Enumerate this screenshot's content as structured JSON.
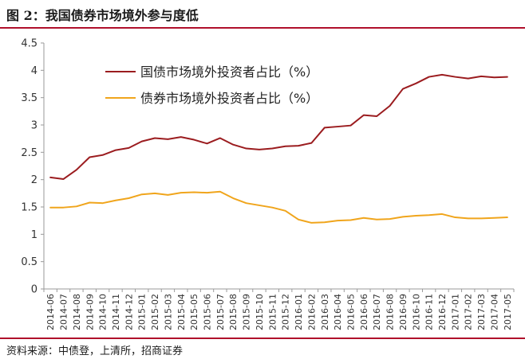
{
  "figure": {
    "title": "图 2：我国债券市场境外参与度低",
    "source": "资料来源：中债登，上清所，招商证券"
  },
  "colors": {
    "accent_rule": "#b0102b",
    "series_1": "#9b1c1f",
    "series_2": "#f0a51c",
    "axis": "#9a9a9a"
  },
  "chart_data": {
    "type": "line",
    "title": "",
    "xlabel": "",
    "ylabel": "",
    "ylim": [
      0,
      4.5
    ],
    "yticks": [
      0,
      0.5,
      1,
      1.5,
      2,
      2.5,
      3,
      3.5,
      4,
      4.5
    ],
    "ytick_labels": [
      "0",
      "0.5",
      "1",
      "1.5",
      "2",
      "2.5",
      "3",
      "3.5",
      "4",
      "4.5"
    ],
    "grid": false,
    "legend_position": "top-left",
    "categories": [
      "2014-06",
      "2014-07",
      "2014-08",
      "2014-09",
      "2014-10",
      "2014-11",
      "2014-12",
      "2015-01",
      "2015-02",
      "2015-03",
      "2015-04",
      "2015-05",
      "2015-06",
      "2015-07",
      "2015-08",
      "2015-09",
      "2015-10",
      "2015-11",
      "2015-12",
      "2016-01",
      "2016-02",
      "2016-03",
      "2016-04",
      "2016-05",
      "2016-06",
      "2016-07",
      "2016-08",
      "2016-09",
      "2016-10",
      "2016-11",
      "2016-12",
      "2017-01",
      "2017-02",
      "2017-03",
      "2017-04",
      "2017-05"
    ],
    "series": [
      {
        "name": "国债市场境外投资者占比（%）",
        "color": "#9b1c1f",
        "values": [
          2.04,
          2.01,
          2.18,
          2.41,
          2.45,
          2.54,
          2.58,
          2.7,
          2.76,
          2.74,
          2.78,
          2.73,
          2.66,
          2.76,
          2.64,
          2.57,
          2.55,
          2.57,
          2.61,
          2.62,
          2.67,
          2.95,
          2.97,
          2.99,
          3.18,
          3.16,
          3.35,
          3.66,
          3.76,
          3.88,
          3.92,
          3.88,
          3.85,
          3.89,
          3.87,
          3.88
        ]
      },
      {
        "name": "债券市场境外投资者占比（%）",
        "color": "#f0a51c",
        "values": [
          1.49,
          1.49,
          1.51,
          1.58,
          1.57,
          1.62,
          1.66,
          1.73,
          1.75,
          1.72,
          1.76,
          1.77,
          1.76,
          1.78,
          1.66,
          1.57,
          1.53,
          1.49,
          1.43,
          1.27,
          1.21,
          1.22,
          1.25,
          1.26,
          1.3,
          1.27,
          1.28,
          1.32,
          1.34,
          1.35,
          1.37,
          1.31,
          1.29,
          1.29,
          1.3,
          1.31
        ]
      }
    ]
  }
}
